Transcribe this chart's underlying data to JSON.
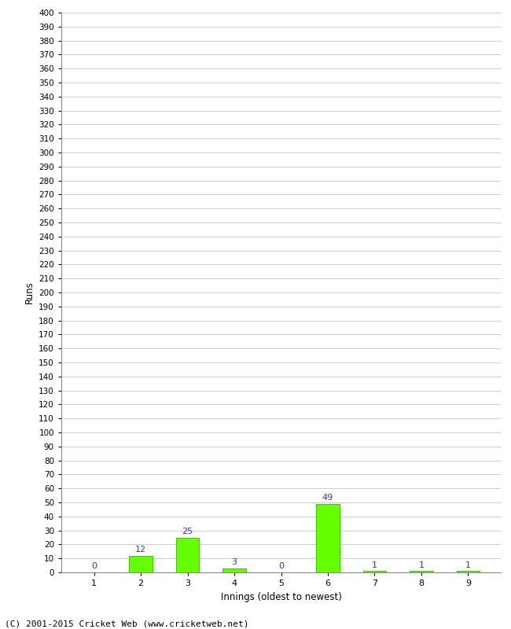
{
  "categories": [
    "1",
    "2",
    "3",
    "4",
    "5",
    "6",
    "7",
    "8",
    "9"
  ],
  "values": [
    0,
    12,
    25,
    3,
    0,
    49,
    1,
    1,
    1
  ],
  "bar_color": "#66ff00",
  "bar_edge_color": "#44cc00",
  "annotation_color": "#3333cc",
  "xlabel": "Innings (oldest to newest)",
  "ylabel": "Runs",
  "ylim": [
    0,
    400
  ],
  "background_color": "#ffffff",
  "grid_color": "#cccccc",
  "footer": "(C) 2001-2015 Cricket Web (www.cricketweb.net)"
}
